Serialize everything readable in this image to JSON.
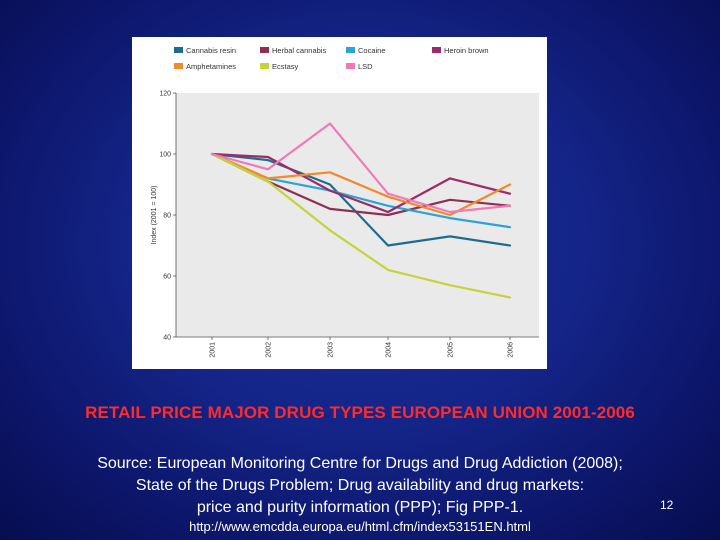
{
  "slide": {
    "title": "RETAIL PRICE MAJOR DRUG TYPES EUROPEAN UNION 2001-2006",
    "source_lines": [
      "Source: European Monitoring Centre for Drugs and Drug Addiction (2008);",
      "State of the Drugs Problem; Drug availability and drug markets:",
      "price and purity information (PPP); Fig PPP-1."
    ],
    "url": "http://www.emcdda.europa.eu/html.cfm/index53151EN.html",
    "page_number": "12"
  },
  "chart_data": {
    "type": "line",
    "title": "",
    "xlabel": "",
    "ylabel": "Index (2001 = 100)",
    "x": [
      "2001",
      "2002",
      "2003",
      "2004",
      "2005",
      "2006"
    ],
    "ylim": [
      40,
      120
    ],
    "yticks": [
      40,
      60,
      80,
      100,
      120
    ],
    "grid": false,
    "legend_position": "top",
    "series": [
      {
        "name": "Cannabis resin",
        "color": "#1f6b8f",
        "values": [
          100,
          98,
          90,
          70,
          73,
          70
        ]
      },
      {
        "name": "Herbal cannabis",
        "color": "#8e2f52",
        "values": [
          100,
          91,
          82,
          80,
          85,
          83
        ]
      },
      {
        "name": "Cocaine",
        "color": "#2aa3d6",
        "values": [
          100,
          92,
          88,
          83,
          79,
          76
        ]
      },
      {
        "name": "Heroin brown",
        "color": "#a02a66",
        "values": [
          100,
          99,
          88,
          81,
          92,
          87
        ]
      },
      {
        "name": "Amphetamines",
        "color": "#f08a2c",
        "values": [
          100,
          92,
          94,
          86,
          80,
          90
        ]
      },
      {
        "name": "Ecstasy",
        "color": "#c5d33a",
        "values": [
          100,
          91,
          75,
          62,
          57,
          53
        ]
      },
      {
        "name": "LSD",
        "color": "#f07ab5",
        "values": [
          100,
          95,
          110,
          87,
          81,
          83
        ]
      }
    ]
  }
}
